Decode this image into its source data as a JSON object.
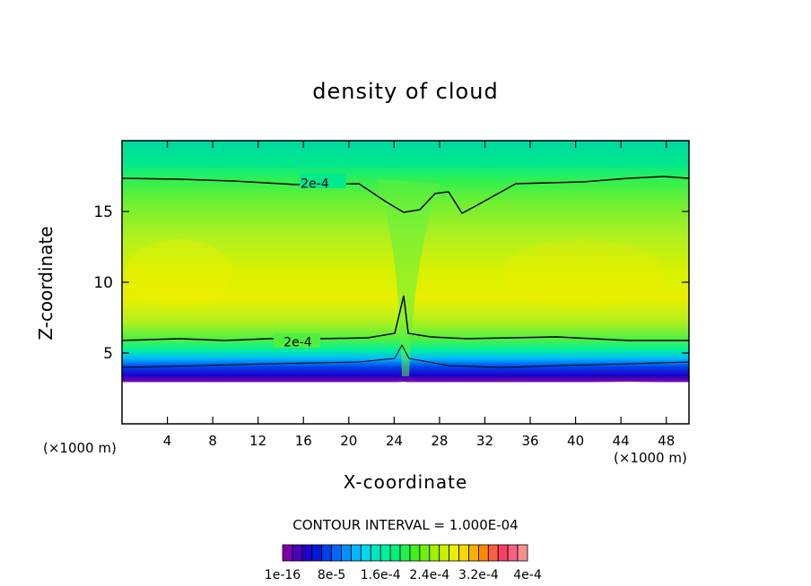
{
  "chart_data": {
    "type": "heatmap",
    "title": "density of cloud",
    "xlabel": "X-coordinate",
    "ylabel": "Z-coordinate",
    "x_unit_left": "(×1000 m)",
    "x_unit_right": "(×1000 m)",
    "xlim": [
      0,
      50
    ],
    "ylim": [
      0,
      20
    ],
    "xticks": [
      4,
      8,
      12,
      16,
      20,
      24,
      28,
      32,
      36,
      40,
      44,
      48
    ],
    "yticks": [
      5,
      10,
      15
    ],
    "contour_interval_text": "CONTOUR INTERVAL = 1.000E-04",
    "contour_labels": [
      {
        "text": "2e-4",
        "x": 17,
        "z": 17.0
      },
      {
        "text": "2e-4",
        "x": 15.5,
        "z": 5.8
      }
    ],
    "colorbar": {
      "labels": [
        "1e-16",
        "8e-5",
        "1.6e-4",
        "2.4e-4",
        "3.2e-4",
        "4e-4"
      ],
      "colors": [
        "#7a00a8",
        "#4800b8",
        "#1e00c8",
        "#0018d8",
        "#0040e8",
        "#0068ff",
        "#0090ff",
        "#00b8ff",
        "#00d8f0",
        "#00e8c0",
        "#00f0a0",
        "#00f078",
        "#20f050",
        "#40f020",
        "#70f010",
        "#a0f000",
        "#c8f000",
        "#e8f000",
        "#f8d800",
        "#f8b000",
        "#f88800",
        "#f86040",
        "#f84060",
        "#f86080",
        "#f89090"
      ]
    }
  }
}
